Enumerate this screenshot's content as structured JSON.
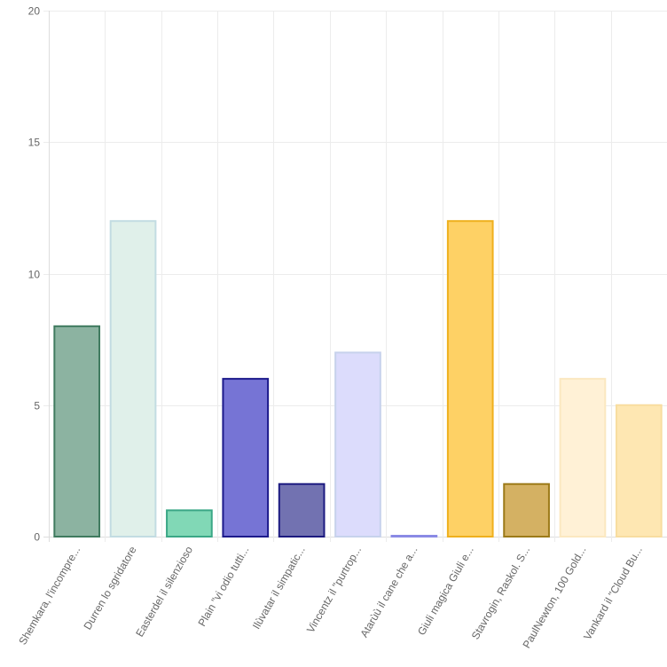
{
  "chart_data": {
    "type": "bar",
    "categories": [
      "Shemkara, l'incompre...",
      "Durren lo sgridatore",
      "Easterdel il silenzioso",
      "Plain \"vi odio tutti...",
      "Ilùvatar il simpatic...",
      "Vincentz il \"purtrop...",
      "Atarùù il cane che a...",
      "Giuli magica Giuli e...",
      "Stavrogin, Raskol. S...",
      "PaulNewton, 100 Gold...",
      "Vankard il \"Cloud Bu..."
    ],
    "values": [
      8,
      12,
      1,
      6,
      2,
      7,
      0,
      12,
      2,
      6,
      5
    ],
    "ylim": [
      0,
      20
    ],
    "yticks": [
      "0",
      "5",
      "10",
      "15",
      "20"
    ],
    "grid": true,
    "legend": "none",
    "colors": {
      "fills": [
        "#8cb3a1",
        "#e0f0ea",
        "#81d8b6",
        "#7674d5",
        "#7272b1",
        "#dcdcfc",
        "#a1a1f1",
        "#fed165",
        "#d4b163",
        "#fff1d6",
        "#fee7b2"
      ],
      "borders": [
        "#3f7a5f",
        "#c2dce2",
        "#3aa786",
        "#1c1a8b",
        "#1c1a80",
        "#c7d2ec",
        "#8a8ae5",
        "#efb01d",
        "#9c7a18",
        "#fbe8c0",
        "#f8dda0"
      ],
      "grid": "#ececec",
      "axis": "#dddddd",
      "text": "#666666"
    }
  }
}
